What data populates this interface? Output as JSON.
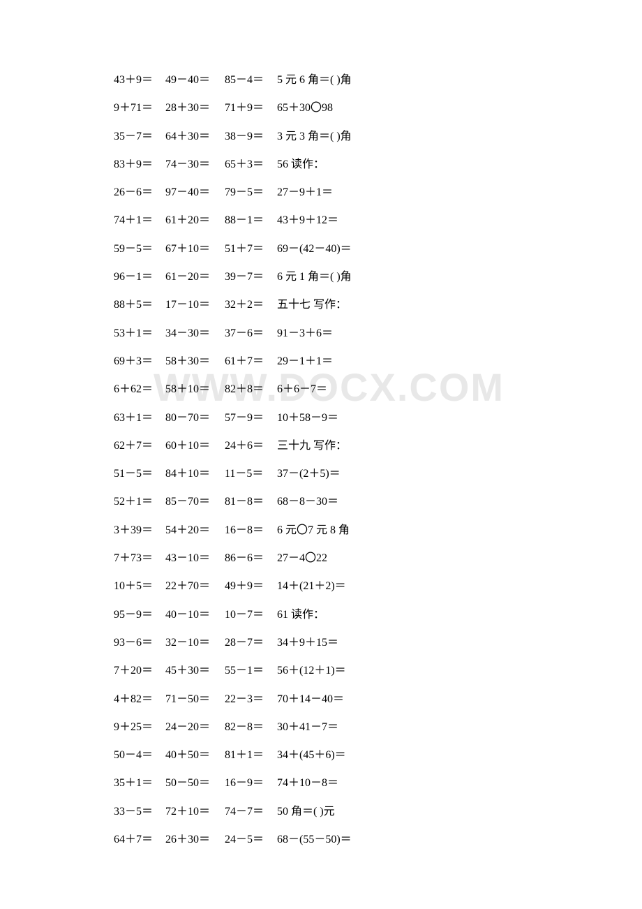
{
  "watermark": "WWW.DOCX.COM",
  "rows": [
    {
      "c1": "43＋9＝",
      "c2": "49－40＝",
      "c3": "85－4＝",
      "c4": "5 元 6 角＝( )角"
    },
    {
      "c1": "9＋71＝",
      "c2": "28＋30＝",
      "c3": "71＋9＝",
      "c4": "65＋30〇98"
    },
    {
      "c1": "35－7＝",
      "c2": "64＋30＝",
      "c3": "38－9＝",
      "c4": "3 元 3 角＝( )角"
    },
    {
      "c1": "83＋9＝",
      "c2": "74－30＝",
      "c3": "65＋3＝",
      "c4": "56 读作："
    },
    {
      "c1": "26－6＝",
      "c2": "97－40＝",
      "c3": "79－5＝",
      "c4": "27－9＋1＝"
    },
    {
      "c1": "74＋1＝",
      "c2": "61＋20＝",
      "c3": "88－1＝",
      "c4": "43＋9＋12＝"
    },
    {
      "c1": "59－5＝",
      "c2": "67＋10＝",
      "c3": "51＋7＝",
      "c4": "69－(42－40)＝"
    },
    {
      "c1": "96－1＝",
      "c2": "61－20＝",
      "c3": "39－7＝",
      "c4": "6 元 1 角＝( )角"
    },
    {
      "c1": "88＋5＝",
      "c2": "17－10＝",
      "c3": "32＋2＝",
      "c4": "五十七 写作："
    },
    {
      "c1": "53＋1＝",
      "c2": "34－30＝",
      "c3": "37－6＝",
      "c4": "91－3＋6＝"
    },
    {
      "c1": "69＋3＝",
      "c2": "58＋30＝",
      "c3": "61＋7＝",
      "c4": "29－1＋1＝"
    },
    {
      "c1": "6＋62＝",
      "c2": "58＋10＝",
      "c3": "82＋8＝",
      "c4": "6＋6－7＝"
    },
    {
      "c1": "63＋1＝",
      "c2": "80－70＝",
      "c3": "57－9＝",
      "c4": "10＋58－9＝"
    },
    {
      "c1": "62＋7＝",
      "c2": "60＋10＝",
      "c3": "24＋6＝",
      "c4": "三十九 写作："
    },
    {
      "c1": "51－5＝",
      "c2": "84＋10＝",
      "c3": "11－5＝",
      "c4": "37－(2＋5)＝"
    },
    {
      "c1": "52＋1＝",
      "c2": "85－70＝",
      "c3": "81－8＝",
      "c4": "68－8－30＝"
    },
    {
      "c1": "3＋39＝",
      "c2": "54＋20＝",
      "c3": "16－8＝",
      "c4": "6 元〇7 元 8 角"
    },
    {
      "c1": "7＋73＝",
      "c2": "43－10＝",
      "c3": "86－6＝",
      "c4": "27－4〇22"
    },
    {
      "c1": "10＋5＝",
      "c2": "22＋70＝",
      "c3": "49＋9＝",
      "c4": "14＋(21＋2)＝"
    },
    {
      "c1": "95－9＝",
      "c2": "40－10＝",
      "c3": "10－7＝",
      "c4": "61 读作："
    },
    {
      "c1": "93－6＝",
      "c2": "32－10＝",
      "c3": "28－7＝",
      "c4": "34＋9＋15＝"
    },
    {
      "c1": "7＋20＝",
      "c2": "45＋30＝",
      "c3": "55－1＝",
      "c4": "56＋(12＋1)＝"
    },
    {
      "c1": "4＋82＝",
      "c2": "71－50＝",
      "c3": "22－3＝",
      "c4": "70＋14－40＝"
    },
    {
      "c1": "9＋25＝",
      "c2": "24－20＝",
      "c3": "82－8＝",
      "c4": "30＋41－7＝"
    },
    {
      "c1": "50－4＝",
      "c2": "40＋50＝",
      "c3": "81＋1＝",
      "c4": "34＋(45＋6)＝"
    },
    {
      "c1": "35＋1＝",
      "c2": "50－50＝",
      "c3": "16－9＝",
      "c4": "74＋10－8＝"
    },
    {
      "c1": "33－5＝",
      "c2": "72＋10＝",
      "c3": "74－7＝",
      "c4": "50 角＝( )元"
    },
    {
      "c1": "64＋7＝",
      "c2": "26＋30＝",
      "c3": "24－5＝",
      "c4": "68－(55－50)＝"
    }
  ]
}
